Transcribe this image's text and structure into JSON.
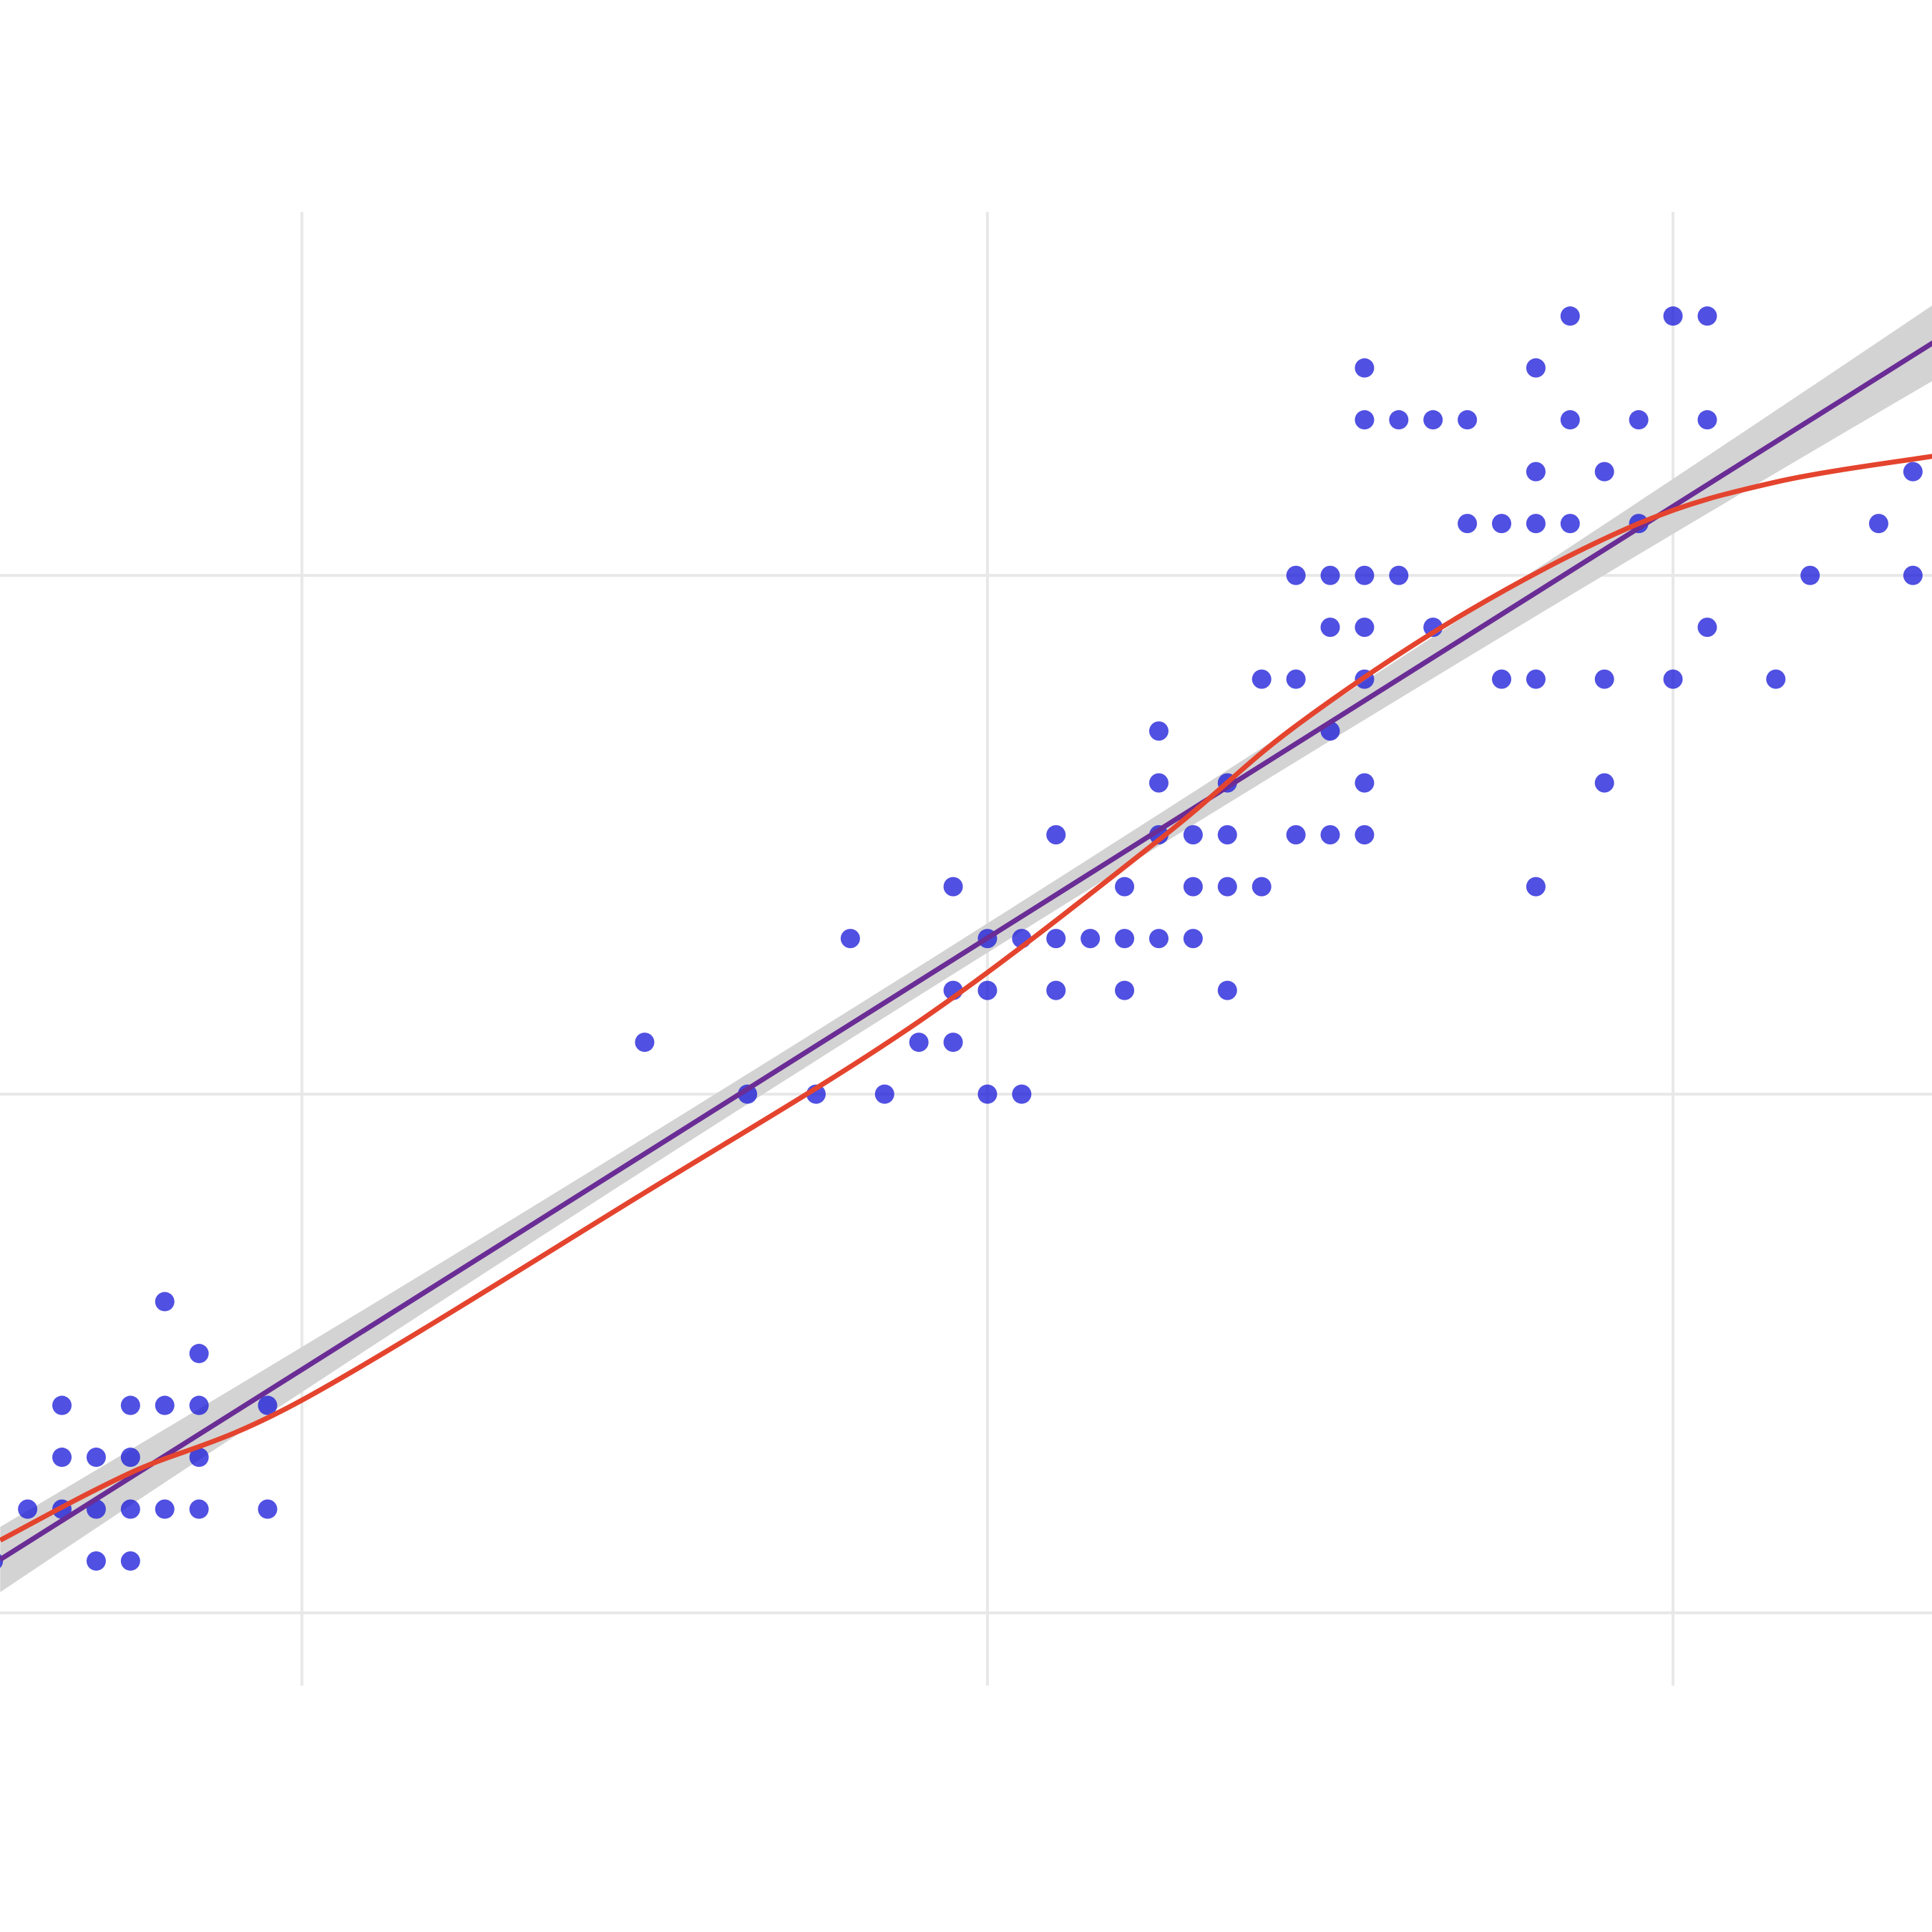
{
  "chart_data": {
    "type": "scatter",
    "title": "",
    "xlabel": "",
    "ylabel": "",
    "xlim": [
      1.12,
      6.76
    ],
    "ylim": [
      -0.62,
      3.11
    ],
    "x_gridlines": [
      2,
      4,
      6
    ],
    "y_gridlines": [
      0,
      1,
      2
    ],
    "grid": true,
    "tick_labels_shown": false,
    "colors": {
      "points": "#1515d8",
      "linear_fit": "#6a2c95",
      "smooth_fit": "#e4442e",
      "confidence_band": "#d3d3d3",
      "grid": "#e8e8e8"
    },
    "points": [
      [
        1.1,
        0.1
      ],
      [
        1.2,
        0.2
      ],
      [
        1.3,
        0.4
      ],
      [
        1.3,
        0.3
      ],
      [
        1.3,
        0.2
      ],
      [
        1.4,
        0.3
      ],
      [
        1.4,
        0.2
      ],
      [
        1.4,
        0.1
      ],
      [
        1.5,
        0.4
      ],
      [
        1.5,
        0.3
      ],
      [
        1.5,
        0.2
      ],
      [
        1.5,
        0.1
      ],
      [
        1.6,
        0.6
      ],
      [
        1.6,
        0.4
      ],
      [
        1.6,
        0.2
      ],
      [
        1.7,
        0.5
      ],
      [
        1.7,
        0.4
      ],
      [
        1.7,
        0.3
      ],
      [
        1.7,
        0.2
      ],
      [
        1.9,
        0.4
      ],
      [
        1.9,
        0.2
      ],
      [
        3.0,
        1.1
      ],
      [
        3.3,
        1.0
      ],
      [
        3.5,
        1.0
      ],
      [
        3.6,
        1.3
      ],
      [
        3.7,
        1.0
      ],
      [
        3.8,
        1.1
      ],
      [
        3.9,
        1.4
      ],
      [
        3.9,
        1.2
      ],
      [
        3.9,
        1.1
      ],
      [
        4.0,
        1.3
      ],
      [
        4.0,
        1.2
      ],
      [
        4.0,
        1.0
      ],
      [
        4.1,
        1.3
      ],
      [
        4.1,
        1.0
      ],
      [
        4.2,
        1.5
      ],
      [
        4.2,
        1.3
      ],
      [
        4.2,
        1.2
      ],
      [
        4.3,
        1.3
      ],
      [
        4.4,
        1.4
      ],
      [
        4.4,
        1.3
      ],
      [
        4.4,
        1.2
      ],
      [
        4.5,
        1.7
      ],
      [
        4.5,
        1.6
      ],
      [
        4.5,
        1.5
      ],
      [
        4.5,
        1.3
      ],
      [
        4.6,
        1.5
      ],
      [
        4.6,
        1.4
      ],
      [
        4.6,
        1.3
      ],
      [
        4.7,
        1.6
      ],
      [
        4.7,
        1.5
      ],
      [
        4.7,
        1.4
      ],
      [
        4.7,
        1.2
      ],
      [
        4.8,
        1.8
      ],
      [
        4.8,
        1.4
      ],
      [
        4.9,
        2.0
      ],
      [
        4.9,
        1.8
      ],
      [
        4.9,
        1.5
      ],
      [
        5.0,
        2.0
      ],
      [
        5.0,
        1.9
      ],
      [
        5.0,
        1.7
      ],
      [
        5.0,
        1.5
      ],
      [
        5.1,
        2.4
      ],
      [
        5.1,
        2.3
      ],
      [
        5.1,
        2.0
      ],
      [
        5.1,
        1.9
      ],
      [
        5.1,
        1.8
      ],
      [
        5.1,
        1.6
      ],
      [
        5.1,
        1.5
      ],
      [
        5.2,
        2.3
      ],
      [
        5.2,
        2.0
      ],
      [
        5.3,
        2.3
      ],
      [
        5.3,
        1.9
      ],
      [
        5.4,
        2.3
      ],
      [
        5.4,
        2.1
      ],
      [
        5.5,
        2.1
      ],
      [
        5.5,
        1.8
      ],
      [
        5.6,
        2.4
      ],
      [
        5.6,
        2.2
      ],
      [
        5.6,
        2.1
      ],
      [
        5.6,
        1.8
      ],
      [
        5.6,
        1.4
      ],
      [
        5.7,
        2.5
      ],
      [
        5.7,
        2.3
      ],
      [
        5.7,
        2.1
      ],
      [
        5.8,
        2.2
      ],
      [
        5.8,
        1.8
      ],
      [
        5.8,
        1.6
      ],
      [
        5.9,
        2.3
      ],
      [
        5.9,
        2.1
      ],
      [
        6.0,
        2.5
      ],
      [
        6.0,
        1.8
      ],
      [
        6.1,
        2.5
      ],
      [
        6.1,
        2.3
      ],
      [
        6.1,
        1.9
      ],
      [
        6.3,
        1.8
      ],
      [
        6.4,
        2.0
      ],
      [
        6.6,
        2.1
      ],
      [
        6.7,
        2.2
      ],
      [
        6.7,
        2.0
      ]
    ],
    "linear_fit": {
      "intercept": -0.363,
      "slope": 0.416,
      "confidence_band": true
    },
    "smooth_fit": [
      [
        1.12,
        0.14
      ],
      [
        1.5,
        0.27
      ],
      [
        2.0,
        0.41
      ],
      [
        3.0,
        0.81
      ],
      [
        3.8,
        1.14
      ],
      [
        4.5,
        1.49
      ],
      [
        4.9,
        1.71
      ],
      [
        5.4,
        1.93
      ],
      [
        5.9,
        2.1
      ],
      [
        6.3,
        2.18
      ],
      [
        6.76,
        2.23
      ]
    ]
  }
}
